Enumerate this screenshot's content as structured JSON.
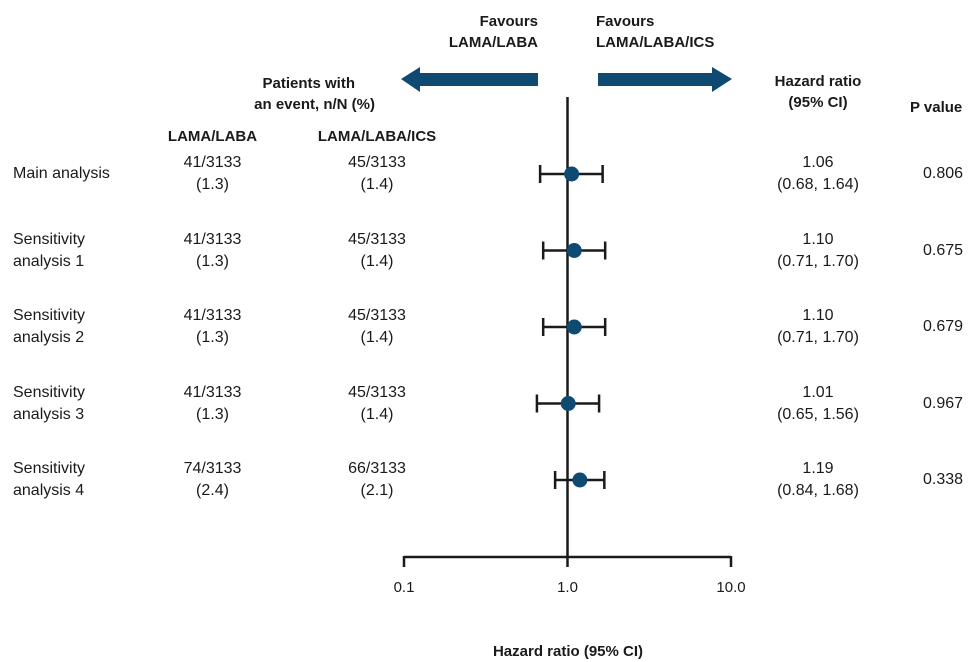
{
  "colors": {
    "marker": "#0e4a72",
    "arrow": "#0e4a72",
    "axis": "#1a1a1a"
  },
  "headers": {
    "patients_line1": "Patients with",
    "patients_line2": "an event, n/N (%)",
    "col_laba": "LAMA/LABA",
    "col_ics": "LAMA/LABA/ICS",
    "hr_line1": "Hazard ratio",
    "hr_line2": "(95% CI)",
    "pvalue": "P value",
    "favours_left_line1": "Favours",
    "favours_left_line2": "LAMA/LABA",
    "favours_right_line1": "Favours",
    "favours_right_line2": "LAMA/LABA/ICS"
  },
  "chart_data": {
    "type": "forest",
    "xscale": "log",
    "xlim": [
      0.1,
      10.0
    ],
    "xticks": [
      "0.1",
      "1.0",
      "10.0"
    ],
    "xlabel": "Hazard ratio (95% CI)",
    "reference": 1.0,
    "rows": [
      {
        "label1": "Main analysis",
        "label2": "",
        "laba_n": "41/3133",
        "laba_pct": "(1.3)",
        "ics_n": "45/3133",
        "ics_pct": "(1.4)",
        "hr": 1.06,
        "lo": 0.68,
        "hi": 1.64,
        "hr_text": "1.06",
        "ci_text": "(0.68, 1.64)",
        "p": "0.806"
      },
      {
        "label1": "Sensitivity",
        "label2": "analysis 1",
        "laba_n": "41/3133",
        "laba_pct": "(1.3)",
        "ics_n": "45/3133",
        "ics_pct": "(1.4)",
        "hr": 1.1,
        "lo": 0.71,
        "hi": 1.7,
        "hr_text": "1.10",
        "ci_text": "(0.71, 1.70)",
        "p": "0.675"
      },
      {
        "label1": "Sensitivity",
        "label2": "analysis 2",
        "laba_n": "41/3133",
        "laba_pct": "(1.3)",
        "ics_n": "45/3133",
        "ics_pct": "(1.4)",
        "hr": 1.1,
        "lo": 0.71,
        "hi": 1.7,
        "hr_text": "1.10",
        "ci_text": "(0.71, 1.70)",
        "p": "0.679"
      },
      {
        "label1": "Sensitivity",
        "label2": "analysis 3",
        "laba_n": "41/3133",
        "laba_pct": "(1.3)",
        "ics_n": "45/3133",
        "ics_pct": "(1.4)",
        "hr": 1.01,
        "lo": 0.65,
        "hi": 1.56,
        "hr_text": "1.01",
        "ci_text": "(0.65, 1.56)",
        "p": "0.967"
      },
      {
        "label1": "Sensitivity",
        "label2": "analysis 4",
        "laba_n": "74/3133",
        "laba_pct": "(2.4)",
        "ics_n": "66/3133",
        "ics_pct": "(2.1)",
        "hr": 1.19,
        "lo": 0.84,
        "hi": 1.68,
        "hr_text": "1.19",
        "ci_text": "(0.84, 1.68)",
        "p": "0.338"
      }
    ]
  }
}
